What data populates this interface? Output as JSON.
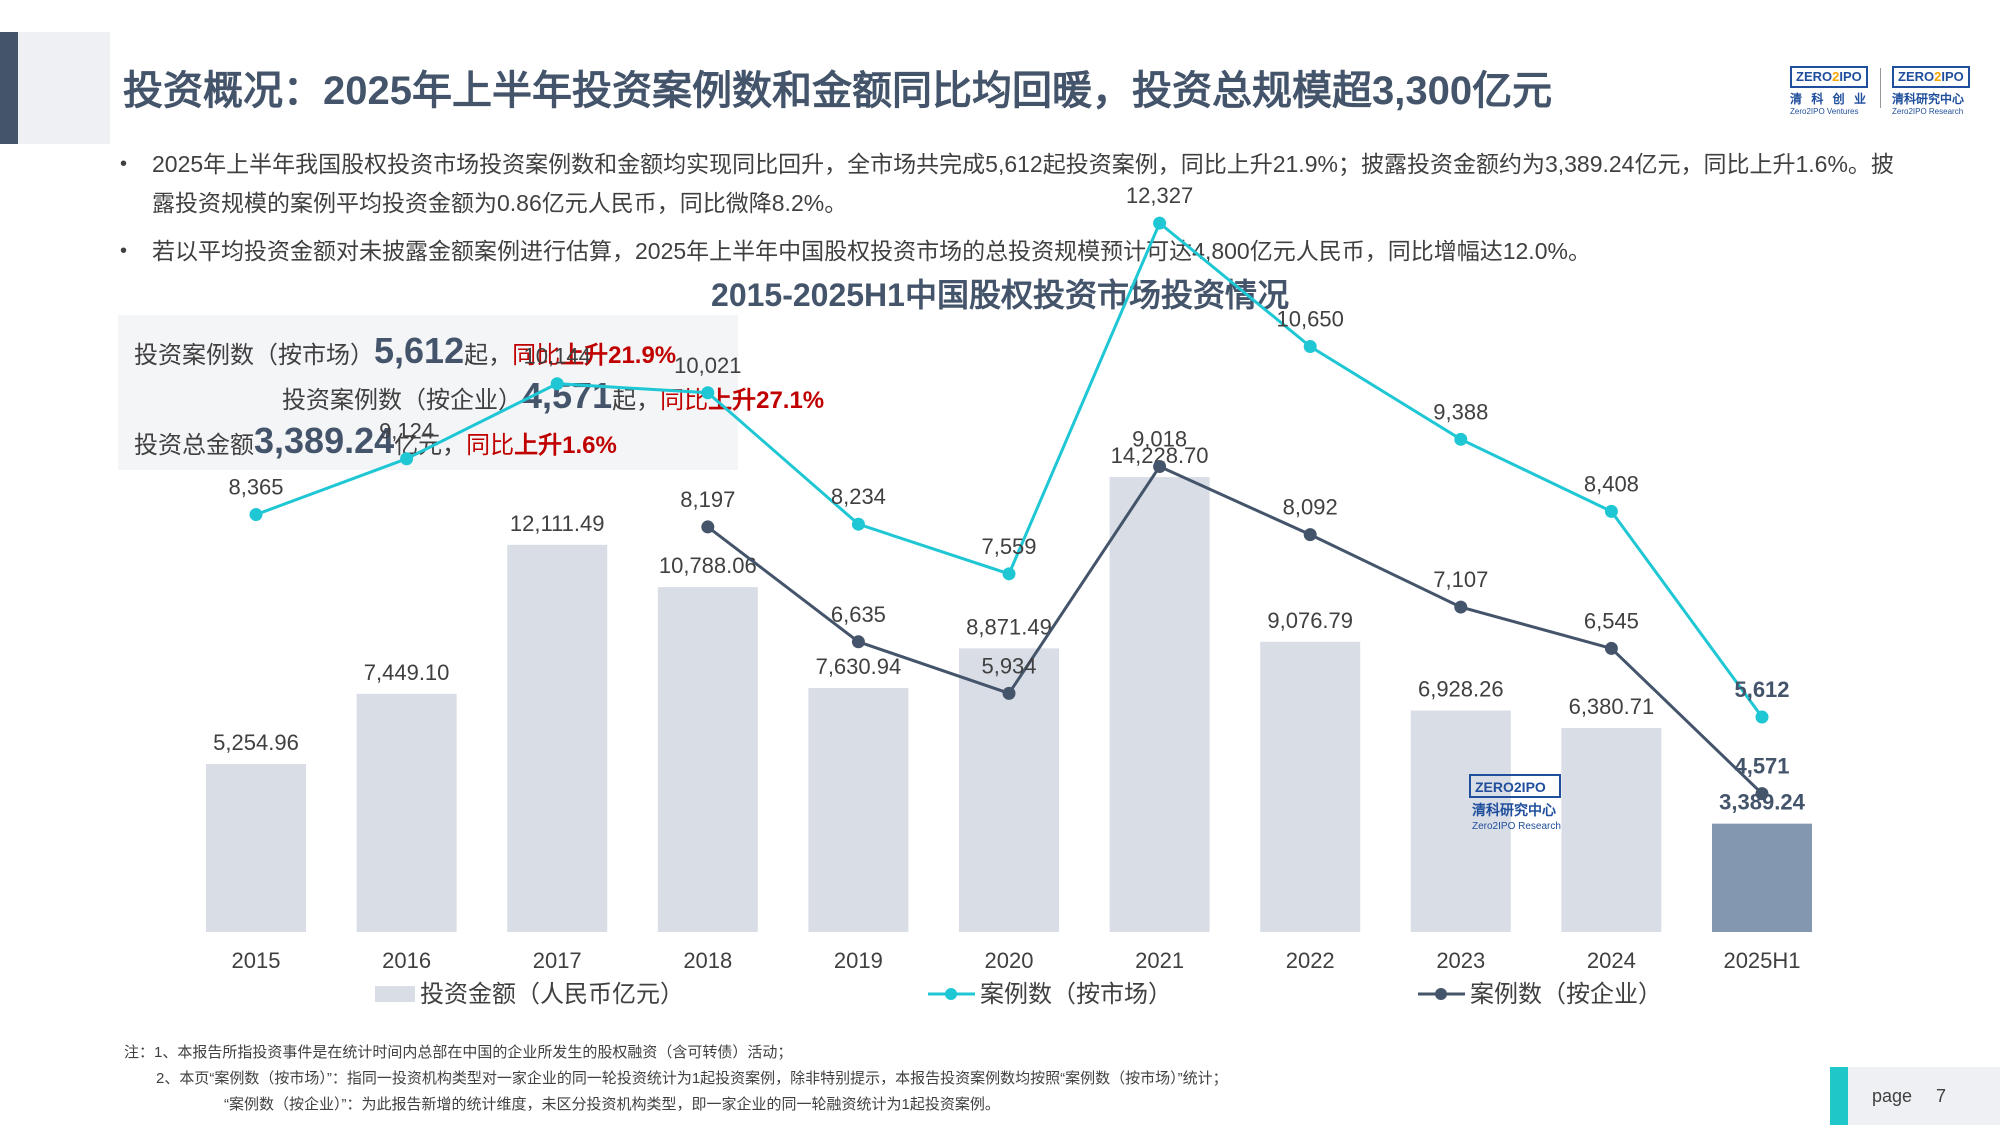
{
  "header": {
    "title": "投资概况：2025年上半年投资案例数和金额同比均回暖，投资总规模超3,300亿元",
    "logos": [
      {
        "brand": "ZERO2IPO",
        "cn": "清 科 创 业",
        "en": "Zero2IPO Ventures"
      },
      {
        "brand": "ZERO2IPO",
        "cn": "清科研究中心",
        "en": "Zero2IPO Research"
      }
    ]
  },
  "bullets": [
    "2025年上半年我国股权投资市场投资案例数和金额均实现同比回升，全市场共完成5,612起投资案例，同比上升21.9%；披露投资金额约为3,389.24亿元，同比上升1.6%。披露投资规模的案例平均投资金额为0.86亿元人民币，同比微降8.2%。",
    "若以平均投资金额对未披露金额案例进行估算，2025年上半年中国股权投资市场的总投资规模预计可达4,800亿元人民币，同比增幅达12.0%。"
  ],
  "kpis": [
    {
      "label": "投资案例数（按市场）",
      "value": "5,612",
      "unit": "起，",
      "cmp": "同比",
      "dir": "上升",
      "pct": "21.9%"
    },
    {
      "label": "投资案例数（按企业）",
      "value": "4,571",
      "unit": "起，",
      "cmp": "同比",
      "dir": "上升",
      "pct": "27.1%"
    },
    {
      "label": "投资总金额",
      "value": "3,389.24",
      "unit": "亿元，",
      "cmp": "同比",
      "dir": "上升",
      "pct": "1.6%"
    }
  ],
  "chart_data": {
    "type": "bar",
    "title": "2015-2025H1中国股权投资市场投资情况",
    "categories": [
      "2015",
      "2016",
      "2017",
      "2018",
      "2019",
      "2020",
      "2021",
      "2022",
      "2023",
      "2024",
      "2025H1"
    ],
    "series": [
      {
        "name": "投资金额（人民币亿元）",
        "type": "bar",
        "color": "#d9dde6",
        "highlight_color": "#8497b0",
        "values": [
          5254.96,
          7449.1,
          12111.49,
          10788.06,
          7630.94,
          8871.49,
          14228.7,
          9076.79,
          6928.26,
          6380.71,
          3389.24
        ],
        "labels": [
          "5,254.96",
          "7,449.10",
          "12,111.49",
          "10,788.06",
          "7,630.94",
          "8,871.49",
          "14,228.70",
          "9,076.79",
          "6,928.26",
          "6,380.71",
          "3,389.24"
        ]
      },
      {
        "name": "案例数（按市场）",
        "type": "line",
        "color": "#1fc7d4",
        "values": [
          8365,
          9124,
          10144,
          10021,
          8234,
          7559,
          12327,
          10650,
          9388,
          8408,
          5612
        ],
        "labels": [
          "8,365",
          "9,124",
          "10,144",
          "10,021",
          "8,234",
          "7,559",
          "12,327",
          "10,650",
          "9,388",
          "8,408",
          "5,612"
        ]
      },
      {
        "name": "案例数（按企业）",
        "type": "line",
        "color": "#44546a",
        "values": [
          null,
          null,
          null,
          8197,
          6635,
          5934,
          9018,
          8092,
          7107,
          6545,
          4571
        ],
        "labels": [
          "",
          "",
          "",
          "8,197",
          "6,635",
          "5,934",
          "9,018",
          "8,092",
          "7,107",
          "6,545",
          "4,571"
        ]
      }
    ],
    "legend_position": "bottom",
    "grid": false
  },
  "watermark": {
    "brand": "ZERO2IPO",
    "cn": "清科研究中心",
    "en": "Zero2IPO Research"
  },
  "notes": [
    "注：1、本报告所指投资事件是在统计时间内总部在中国的企业所发生的股权融资（含可转债）活动；",
    "2、本页“案例数（按市场）”：指同一投资机构类型对一家企业的同一轮投资统计为1起投资案例，除非特别提示，本报告投资案例数均按照“案例数（按市场）”统计；",
    "“案例数（按企业）”：为此报告新增的统计维度，未区分投资机构类型，即一家企业的同一轮融资统计为1起投资案例。"
  ],
  "footer": {
    "page_label": "page",
    "page_number": "7"
  }
}
